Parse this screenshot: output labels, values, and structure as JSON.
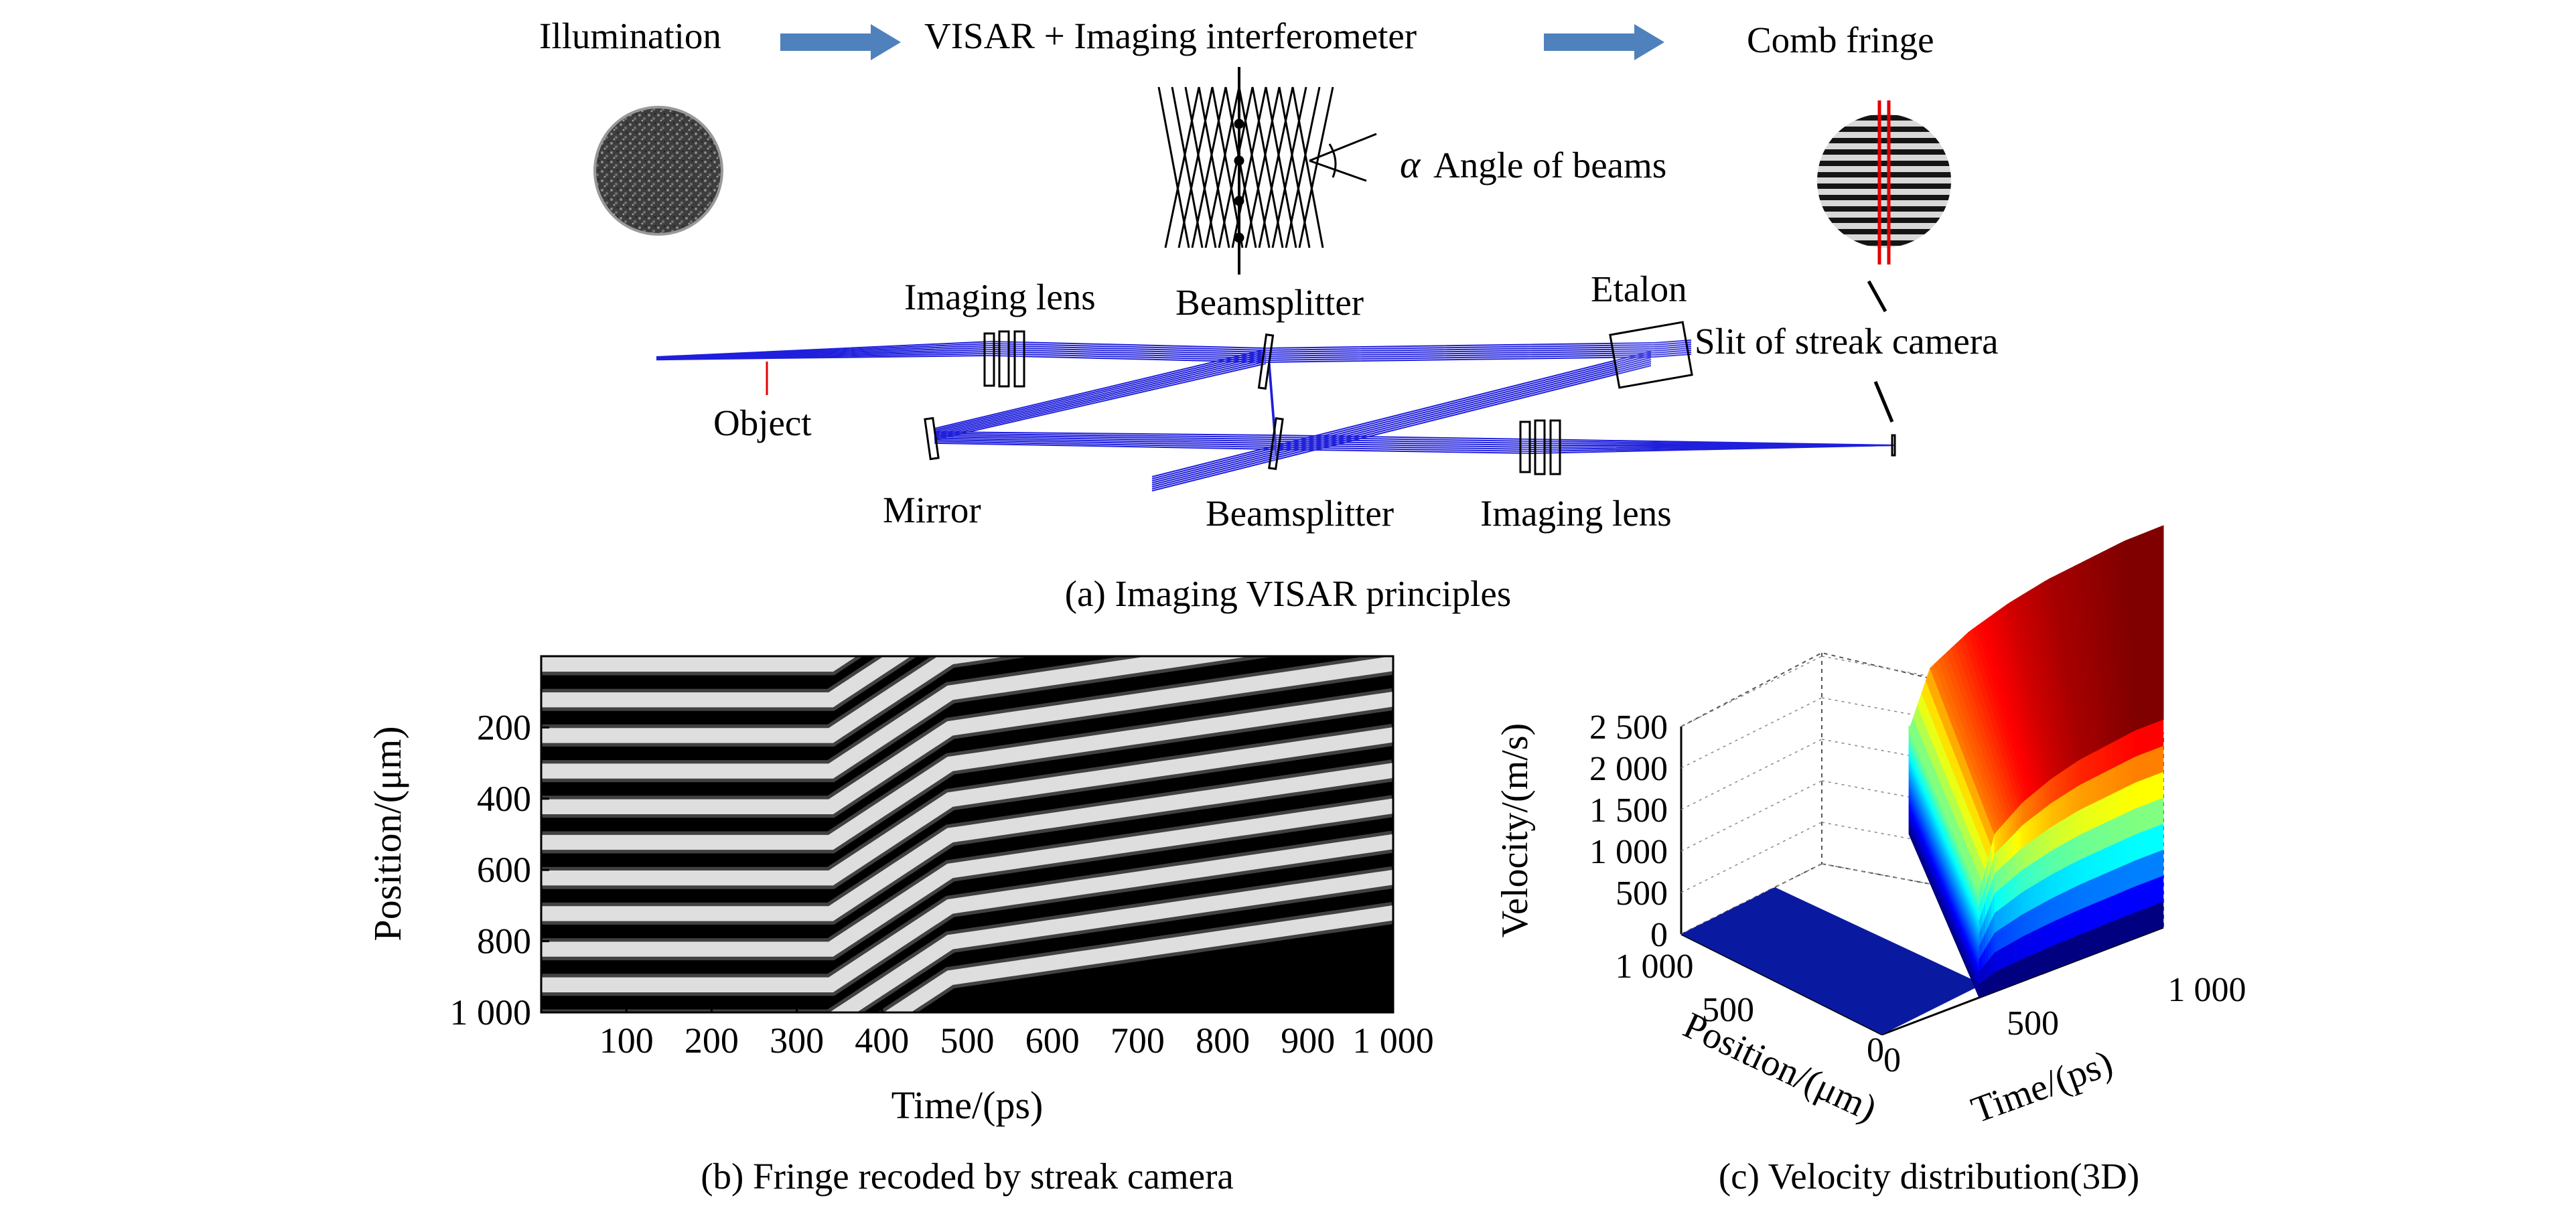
{
  "panel_a": {
    "caption": "(a) Imaging VISAR principles",
    "flow": {
      "step1": "Illumination",
      "step2": "VISAR + Imaging interferometer",
      "step3": "Comb fringe"
    },
    "angle_symbol": "α",
    "angle_label": "Angle of beams",
    "labels": {
      "imaging_lens_top": "Imaging lens",
      "beamsplitter_top": "Beamsplitter",
      "etalon": "Etalon",
      "slit": "Slit of streak camera",
      "object": "Object",
      "mirror": "Mirror",
      "beamsplitter_bottom": "Beamsplitter",
      "imaging_lens_bottom": "Imaging lens"
    },
    "colors": {
      "arrow": "#4f81bd",
      "rays": "#1f1fdc",
      "comb_marker": "#e00000",
      "object_marker": "#e00000"
    }
  },
  "panel_b": {
    "caption": "(b) Fringe recoded by streak camera",
    "xlabel": "Time/(ps)",
    "ylabel": "Position/(μm)",
    "xticks": [
      "100",
      "200",
      "300",
      "400",
      "500",
      "600",
      "700",
      "800",
      "900",
      "1 000"
    ],
    "yticks": [
      "200",
      "400",
      "600",
      "800",
      "1 000"
    ]
  },
  "panel_c": {
    "caption": "(c) Velocity distribution(3D)",
    "zlabel": "Velocity/(m/s)",
    "zticks": [
      "0",
      "500",
      "1 000",
      "1 500",
      "2 000",
      "2 500"
    ],
    "position_label": "Position/(μm)",
    "position_ticks": [
      "1 000",
      "500",
      "0"
    ],
    "time_label": "Time/(ps)",
    "time_ticks": [
      "0",
      "500",
      "1 000"
    ]
  },
  "chart_data": [
    {
      "type": "heatmap",
      "title": "(b) Fringe recoded by streak camera",
      "xlabel": "Time/(ps)",
      "ylabel": "Position/(μm)",
      "xlim": [
        0,
        1000
      ],
      "ylim": [
        0,
        1000
      ],
      "fringe_count": 10,
      "fringe_shift_start_ps": 340,
      "fringe_shift_rapid_end_ps": 480,
      "colormap": "gray"
    },
    {
      "type": "area",
      "title": "(c) Velocity distribution(3D)",
      "xlabel": "Time/(ps)",
      "ylabel": "Position/(μm)",
      "zlabel": "Velocity/(m/s)",
      "xlim": [
        0,
        1000
      ],
      "ylim": [
        0,
        1000
      ],
      "zlim": [
        0,
        2500
      ],
      "x": [
        0,
        100,
        200,
        300,
        340,
        345,
        400,
        500,
        600,
        700,
        800,
        900,
        1000
      ],
      "velocity": [
        0,
        0,
        0,
        0,
        0,
        1250,
        1900,
        2150,
        2300,
        2400,
        2450,
        2500,
        2500
      ],
      "colormap": "jet"
    }
  ]
}
